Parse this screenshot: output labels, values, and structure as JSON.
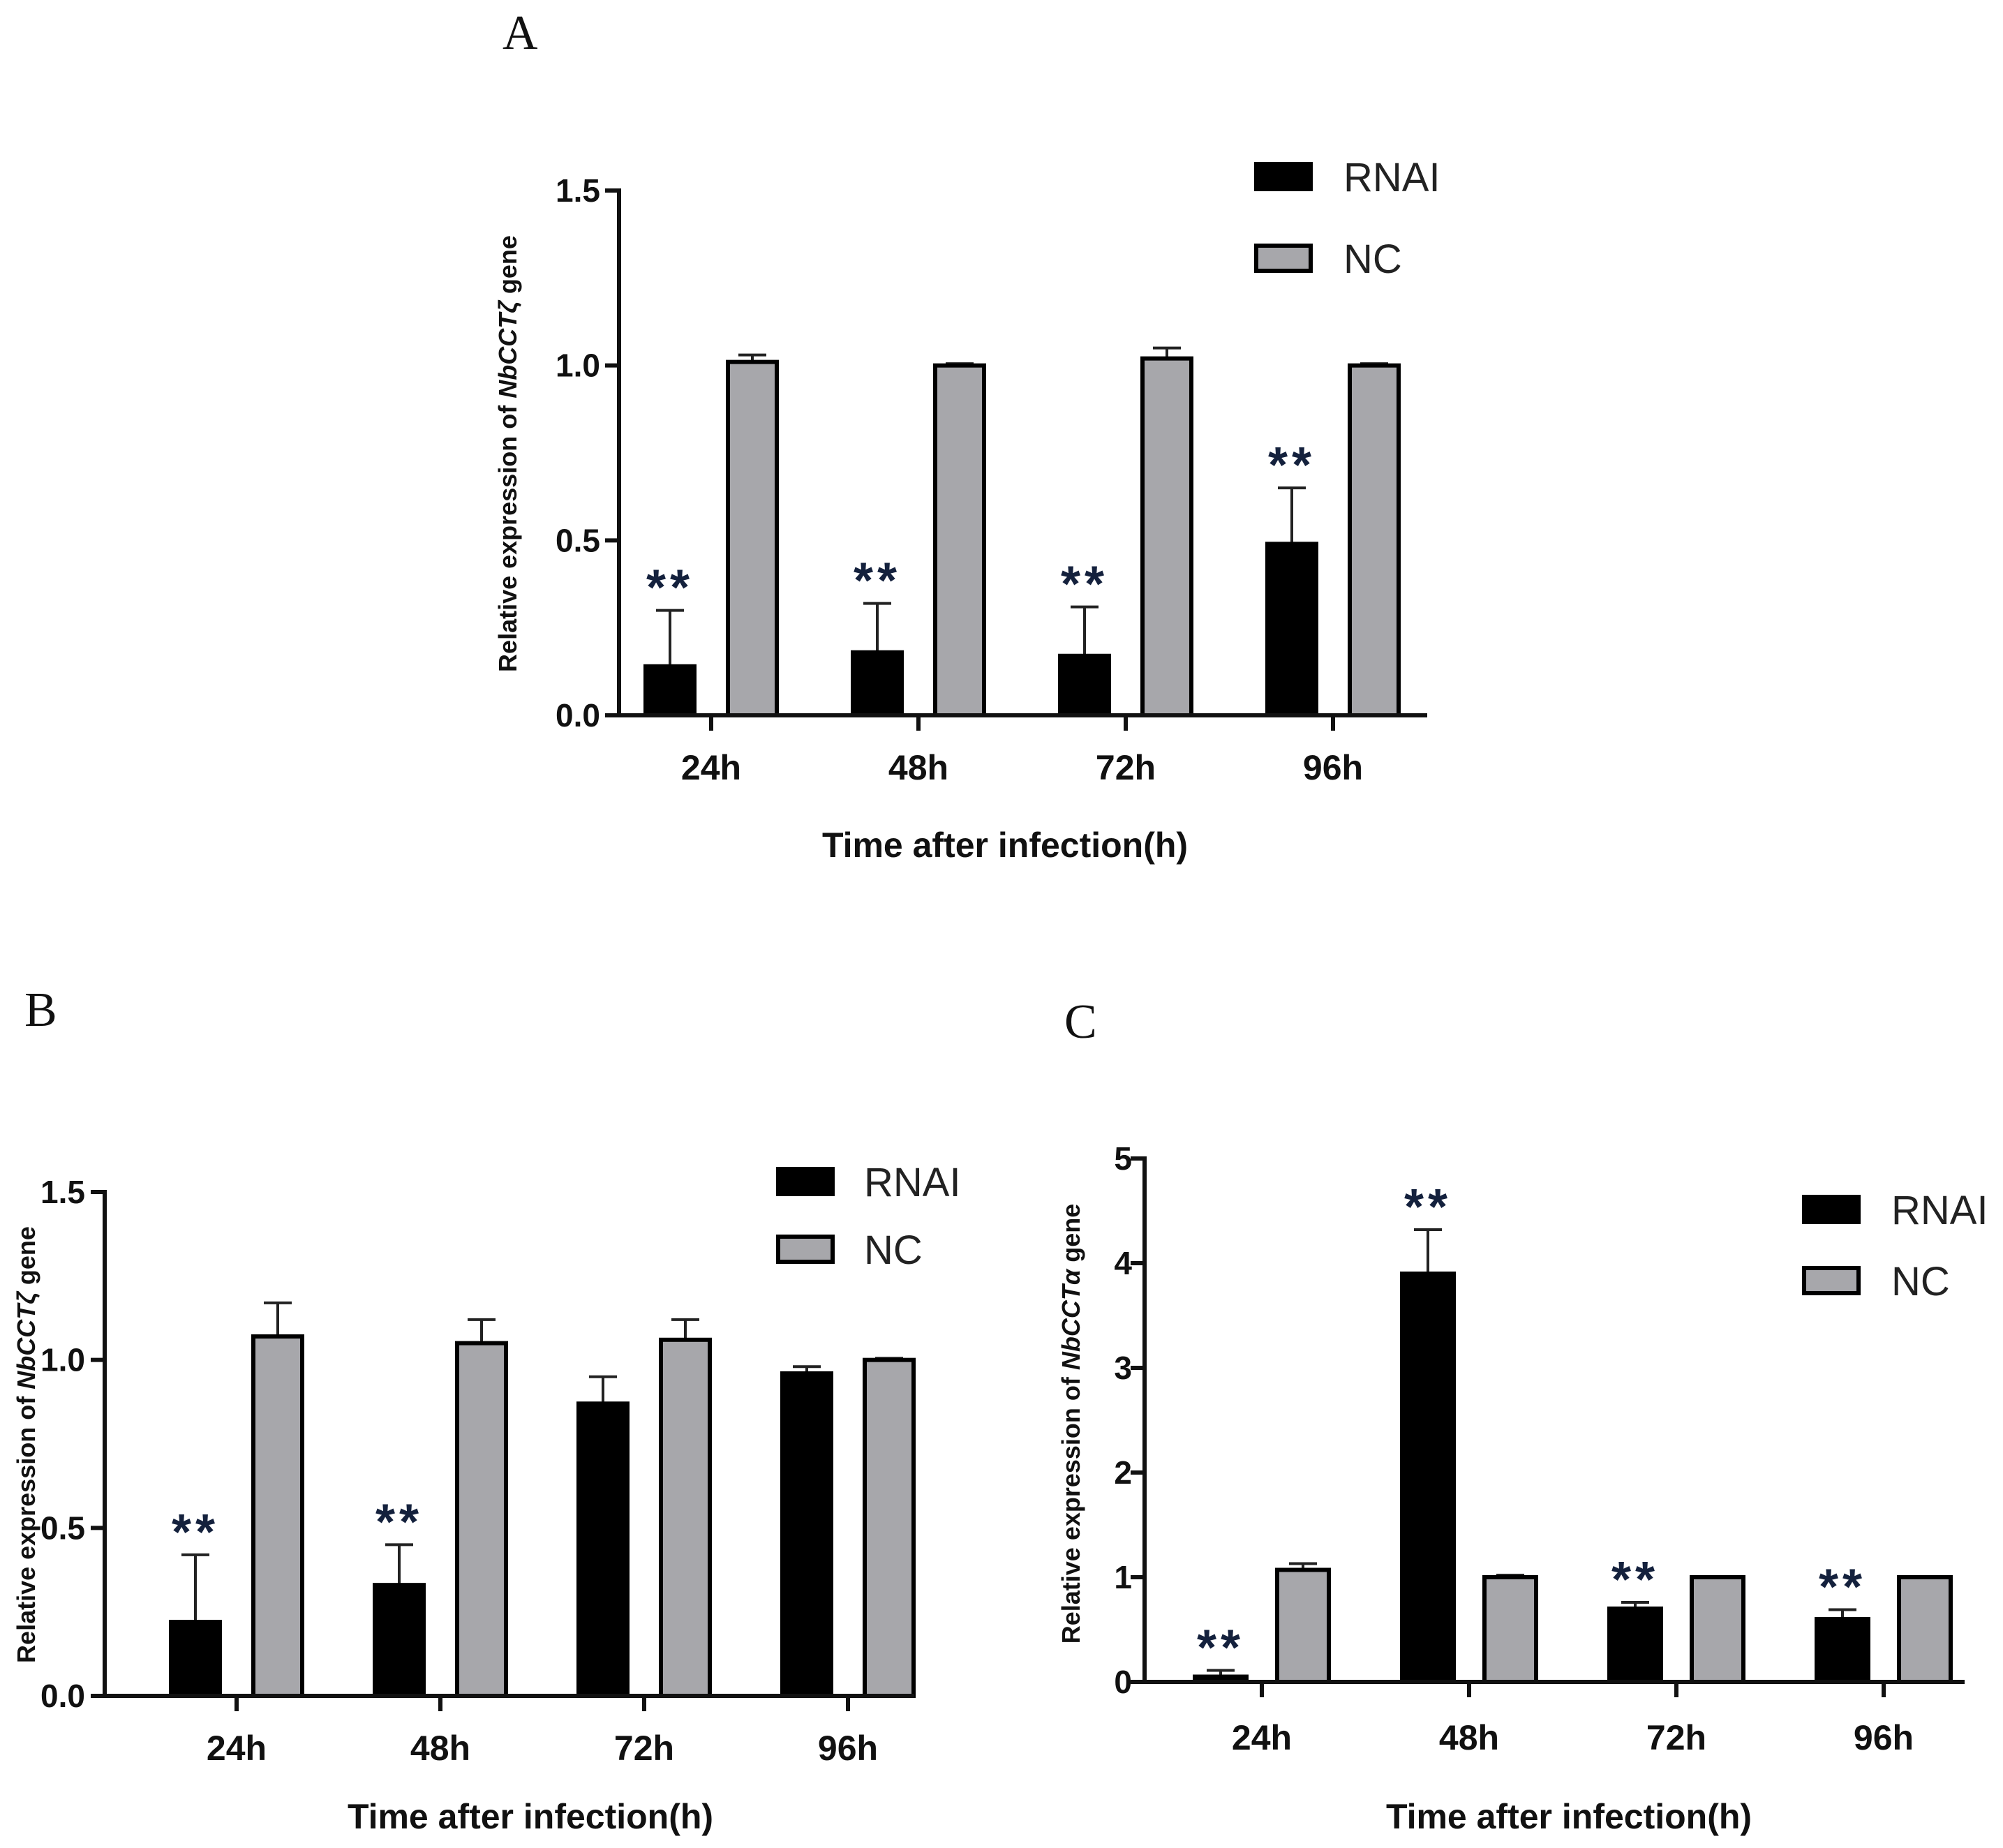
{
  "colors": {
    "rnai": "#000000",
    "nc": "#a7a7ab",
    "axis": "#111111",
    "sig": "#14213d"
  },
  "chart_data": [
    {
      "panel": "A",
      "type": "bar",
      "categories": [
        "24h",
        "48h",
        "72h",
        "96h"
      ],
      "xlabel": "Time after infection(h)",
      "ylabel_prefix": "Relative expression of ",
      "ylabel_gene": "NbCCTζ",
      "ylabel_suffix": " gene",
      "ylim": [
        0,
        1.5
      ],
      "yticks": [
        "0.0",
        "0.5",
        "1.0",
        "1.5"
      ],
      "series": [
        {
          "name": "RNAI",
          "values": [
            0.14,
            0.18,
            0.17,
            0.49
          ],
          "errors": [
            0.16,
            0.14,
            0.14,
            0.16
          ]
        },
        {
          "name": "NC",
          "values": [
            1.01,
            1.0,
            1.02,
            1.0
          ],
          "errors": [
            0.02,
            0.005,
            0.03,
            0.005
          ]
        }
      ],
      "significance": [
        "**",
        "**",
        "**",
        "**"
      ]
    },
    {
      "panel": "B",
      "type": "bar",
      "categories": [
        "24h",
        "48h",
        "72h",
        "96h"
      ],
      "xlabel": "Time after infection(h)",
      "ylabel_prefix": "Relative expression of ",
      "ylabel_gene": "NbCCTζ",
      "ylabel_suffix": " gene",
      "ylim": [
        0,
        1.5
      ],
      "yticks": [
        "0.0",
        "0.5",
        "1.0",
        "1.5"
      ],
      "series": [
        {
          "name": "RNAI",
          "values": [
            0.22,
            0.33,
            0.87,
            0.96
          ],
          "errors": [
            0.2,
            0.12,
            0.08,
            0.02
          ]
        },
        {
          "name": "NC",
          "values": [
            1.07,
            1.05,
            1.06,
            1.0
          ],
          "errors": [
            0.1,
            0.07,
            0.06,
            0.005
          ]
        }
      ],
      "significance": [
        "**",
        "**",
        "",
        ""
      ]
    },
    {
      "panel": "C",
      "type": "bar",
      "categories": [
        "24h",
        "48h",
        "72h",
        "96h"
      ],
      "xlabel": "Time after infection(h)",
      "ylabel_prefix": "Relative expression of ",
      "ylabel_gene": "NbCCTα",
      "ylabel_suffix": " gene",
      "ylim": [
        0,
        5
      ],
      "yticks": [
        "0",
        "1",
        "2",
        "3",
        "4",
        "5"
      ],
      "series": [
        {
          "name": "RNAI",
          "values": [
            0.05,
            3.9,
            0.7,
            0.6
          ],
          "errors": [
            0.06,
            0.42,
            0.06,
            0.09
          ]
        },
        {
          "name": "NC",
          "values": [
            1.07,
            1.0,
            1.0,
            1.0
          ],
          "errors": [
            0.06,
            0.02,
            0.005,
            0.005
          ]
        }
      ],
      "significance": [
        "**",
        "**",
        "**",
        "**"
      ]
    }
  ]
}
